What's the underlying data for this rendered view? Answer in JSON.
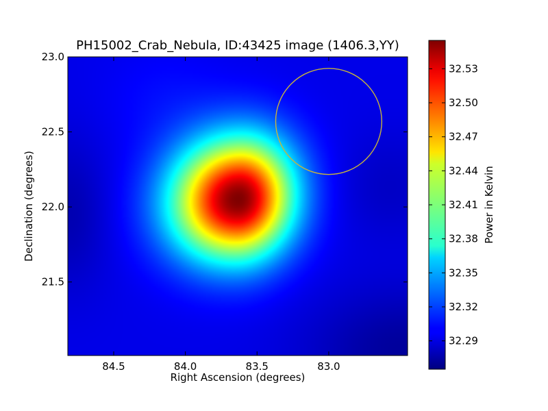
{
  "chart_data": {
    "type": "heatmap",
    "title": "PH15002_Crab_Nebula, ID:43425 image (1406.3,YY)",
    "xlabel": "Right Ascension (degrees)",
    "ylabel": "Declination (degrees)",
    "colorbar_label": "Power in Kelvin",
    "colormap": "jet",
    "xlim": [
      84.82,
      82.45
    ],
    "ylim": [
      21.01,
      23.0
    ],
    "x_ticks": [
      84.5,
      84.0,
      83.5,
      83.0
    ],
    "x_tick_labels": [
      "84.5",
      "84.0",
      "83.5",
      "83.0"
    ],
    "y_ticks": [
      21.5,
      22.0,
      22.5,
      23.0
    ],
    "y_tick_labels": [
      "21.5",
      "22.0",
      "22.5",
      "23.0"
    ],
    "value_range": [
      32.265,
      32.555
    ],
    "colorbar_ticks": [
      32.29,
      32.32,
      32.35,
      32.38,
      32.41,
      32.44,
      32.47,
      32.5,
      32.53
    ],
    "colorbar_tick_labels": [
      "32.29",
      "32.32",
      "32.35",
      "32.38",
      "32.41",
      "32.44",
      "32.47",
      "32.50",
      "32.53"
    ],
    "peak": {
      "ra": 83.63,
      "dec": 22.05,
      "value": 32.555
    },
    "background_value": 32.295,
    "circle": {
      "center_ra": 83.0,
      "center_dec": 22.57,
      "radius_deg": 0.37,
      "color": "#c8b43c"
    }
  }
}
